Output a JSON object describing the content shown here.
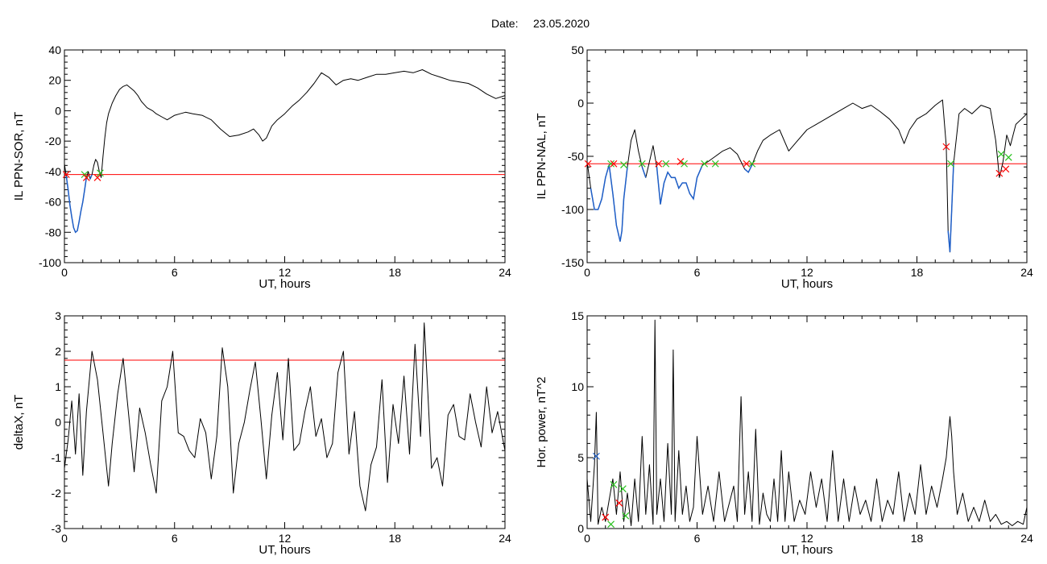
{
  "figure": {
    "date_label": "Date:",
    "date_value": "23.05.2020"
  },
  "colors": {
    "trace": "#000000",
    "threshold": "#ff0000",
    "highlight": "#1f5fc8",
    "marker_red": "#ff0000",
    "marker_green": "#29c21f",
    "marker_blue": "#1f5fc8"
  },
  "chart_data": [
    {
      "type": "line",
      "xlabel": "UT, hours",
      "ylabel": "IL PPN-SOR, nT",
      "xlim": [
        0,
        24
      ],
      "ylim": [
        -100,
        40
      ],
      "xticks": [
        0,
        6,
        12,
        18,
        24
      ],
      "yticks": [
        -100,
        -80,
        -60,
        -40,
        -20,
        0,
        20,
        40
      ],
      "threshold": -42,
      "series": [
        {
          "x": [
            0,
            0.1,
            0.2,
            0.3,
            0.4,
            0.5,
            0.6,
            0.7,
            0.8,
            0.9,
            1.0,
            1.1,
            1.2,
            1.3,
            1.4,
            1.5,
            1.6,
            1.7,
            1.8,
            1.9,
            2.0,
            2.1,
            2.2,
            2.3,
            2.4,
            2.6,
            2.8,
            3.0,
            3.2,
            3.4,
            3.6,
            3.8,
            4.0,
            4.2,
            4.5,
            4.8,
            5.0,
            5.3,
            5.6,
            6.0,
            6.3,
            6.6,
            7.0,
            7.5,
            8.0,
            8.5,
            9.0,
            9.5,
            10.0,
            10.3,
            10.6,
            10.8,
            11.0,
            11.3,
            11.6,
            12.0,
            12.4,
            12.8,
            13.2,
            13.6,
            14.0,
            14.4,
            14.8,
            15.2,
            15.6,
            16.0,
            16.5,
            17.0,
            17.5,
            18.0,
            18.5,
            19.0,
            19.5,
            20.0,
            20.5,
            21.0,
            21.5,
            22.0,
            22.5,
            23.0,
            23.5,
            24.0
          ],
          "y": [
            -35,
            -43,
            -52,
            -62,
            -70,
            -77,
            -80,
            -79,
            -73,
            -66,
            -60,
            -52,
            -44,
            -40,
            -45,
            -42,
            -36,
            -32,
            -34,
            -40,
            -44,
            -30,
            -18,
            -8,
            -2,
            5,
            10,
            14,
            16,
            17,
            15,
            13,
            10,
            6,
            2,
            0,
            -2,
            -4,
            -6,
            -3,
            -2,
            -1,
            -2,
            -3,
            -6,
            -12,
            -17,
            -16,
            -14,
            -12,
            -16,
            -20,
            -18,
            -10,
            -6,
            -2,
            3,
            7,
            12,
            18,
            25,
            22,
            17,
            20,
            21,
            20,
            22,
            24,
            24,
            25,
            26,
            25,
            27,
            24,
            22,
            20,
            19,
            18,
            15,
            11,
            8,
            10
          ],
          "highlight_below_threshold": true
        }
      ],
      "markers": [
        {
          "x": 0.1,
          "y": -42,
          "color": "red"
        },
        {
          "x": 1.1,
          "y": -42,
          "color": "green"
        },
        {
          "x": 1.2,
          "y": -44,
          "color": "red"
        },
        {
          "x": 1.8,
          "y": -44,
          "color": "red"
        },
        {
          "x": 1.95,
          "y": -41,
          "color": "green"
        }
      ]
    },
    {
      "type": "line",
      "xlabel": "UT, hours",
      "ylabel": "IL PPN-NAL, nT",
      "xlim": [
        0,
        24
      ],
      "ylim": [
        -150,
        50
      ],
      "xticks": [
        0,
        6,
        12,
        18,
        24
      ],
      "yticks": [
        -150,
        -100,
        -50,
        0,
        50
      ],
      "threshold": -57,
      "series": [
        {
          "x": [
            0,
            0.2,
            0.4,
            0.6,
            0.8,
            1.0,
            1.2,
            1.4,
            1.6,
            1.8,
            1.9,
            2.0,
            2.2,
            2.4,
            2.6,
            2.8,
            3.0,
            3.2,
            3.4,
            3.6,
            3.8,
            4.0,
            4.2,
            4.4,
            4.6,
            4.8,
            5.0,
            5.2,
            5.4,
            5.6,
            5.8,
            6.0,
            6.3,
            6.6,
            7.0,
            7.4,
            7.8,
            8.2,
            8.6,
            8.8,
            9.0,
            9.3,
            9.6,
            10.0,
            10.5,
            11.0,
            11.5,
            12.0,
            12.5,
            13.0,
            13.5,
            14.0,
            14.5,
            15.0,
            15.5,
            16.0,
            16.5,
            17.0,
            17.3,
            17.6,
            18.0,
            18.5,
            19.0,
            19.4,
            19.6,
            19.7,
            19.8,
            19.9,
            20.0,
            20.3,
            20.6,
            21.0,
            21.5,
            22.0,
            22.3,
            22.5,
            22.7,
            22.9,
            23.1,
            23.4,
            23.7,
            24.0
          ],
          "y": [
            -55,
            -80,
            -100,
            -100,
            -90,
            -70,
            -58,
            -85,
            -115,
            -130,
            -120,
            -90,
            -60,
            -35,
            -25,
            -45,
            -60,
            -70,
            -55,
            -40,
            -60,
            -95,
            -75,
            -65,
            -70,
            -70,
            -80,
            -75,
            -75,
            -85,
            -90,
            -70,
            -58,
            -55,
            -50,
            -45,
            -42,
            -48,
            -62,
            -65,
            -58,
            -45,
            -35,
            -30,
            -25,
            -45,
            -35,
            -25,
            -20,
            -15,
            -10,
            -5,
            0,
            -5,
            -2,
            -8,
            -15,
            -25,
            -38,
            -25,
            -15,
            -10,
            -2,
            3,
            -40,
            -120,
            -140,
            -100,
            -57,
            -10,
            -5,
            -10,
            -2,
            -5,
            -35,
            -70,
            -55,
            -30,
            -40,
            -20,
            -15,
            -10
          ],
          "highlight_below_threshold": true
        }
      ],
      "markers": [
        {
          "x": 0.05,
          "y": -57,
          "color": "red"
        },
        {
          "x": 1.3,
          "y": -57,
          "color": "green"
        },
        {
          "x": 1.45,
          "y": -57,
          "color": "red"
        },
        {
          "x": 2.0,
          "y": -58,
          "color": "green"
        },
        {
          "x": 3.0,
          "y": -57,
          "color": "green"
        },
        {
          "x": 3.9,
          "y": -57,
          "color": "red"
        },
        {
          "x": 4.3,
          "y": -57,
          "color": "green"
        },
        {
          "x": 5.1,
          "y": -55,
          "color": "red"
        },
        {
          "x": 5.3,
          "y": -57,
          "color": "green"
        },
        {
          "x": 6.4,
          "y": -57,
          "color": "green"
        },
        {
          "x": 7.0,
          "y": -57,
          "color": "green"
        },
        {
          "x": 8.7,
          "y": -57,
          "color": "red"
        },
        {
          "x": 9.0,
          "y": -57,
          "color": "green"
        },
        {
          "x": 19.6,
          "y": -41,
          "color": "red"
        },
        {
          "x": 19.85,
          "y": -57,
          "color": "green"
        },
        {
          "x": 22.5,
          "y": -66,
          "color": "red"
        },
        {
          "x": 22.6,
          "y": -48,
          "color": "green"
        },
        {
          "x": 22.85,
          "y": -62,
          "color": "red"
        },
        {
          "x": 23.0,
          "y": -51,
          "color": "green"
        }
      ]
    },
    {
      "type": "line",
      "xlabel": "UT, hours",
      "ylabel": "deltaX, nT",
      "xlim": [
        0,
        24
      ],
      "ylim": [
        -3,
        3
      ],
      "xticks": [
        0,
        6,
        12,
        18,
        24
      ],
      "yticks": [
        -3,
        -2,
        -1,
        0,
        1,
        2,
        3
      ],
      "threshold": 1.75,
      "series": [
        {
          "x": [
            0,
            0.2,
            0.4,
            0.6,
            0.8,
            1.0,
            1.2,
            1.5,
            1.8,
            2.1,
            2.4,
            2.6,
            2.9,
            3.2,
            3.5,
            3.8,
            4.1,
            4.4,
            4.7,
            5.0,
            5.3,
            5.6,
            5.9,
            6.2,
            6.5,
            6.8,
            7.1,
            7.4,
            7.7,
            8.0,
            8.3,
            8.6,
            8.9,
            9.2,
            9.5,
            9.8,
            10.1,
            10.4,
            10.7,
            11.0,
            11.3,
            11.6,
            11.9,
            12.2,
            12.5,
            12.8,
            13.1,
            13.4,
            13.7,
            14.0,
            14.3,
            14.6,
            14.9,
            15.2,
            15.5,
            15.8,
            16.1,
            16.4,
            16.7,
            17.0,
            17.3,
            17.6,
            17.9,
            18.2,
            18.5,
            18.8,
            19.1,
            19.4,
            19.6,
            19.8,
            20.0,
            20.3,
            20.6,
            20.9,
            21.2,
            21.5,
            21.8,
            22.1,
            22.4,
            22.7,
            23.0,
            23.3,
            23.6,
            24.0
          ],
          "y": [
            -1.3,
            -0.5,
            0.6,
            -0.9,
            0.8,
            -1.5,
            0.3,
            2.0,
            1.2,
            -0.3,
            -1.8,
            -0.6,
            0.8,
            1.8,
            0.2,
            -1.4,
            0.4,
            -0.3,
            -1.2,
            -2.0,
            0.6,
            1.0,
            2.0,
            -0.3,
            -0.4,
            -0.8,
            -1.0,
            0.1,
            -0.3,
            -1.6,
            -0.4,
            2.1,
            1.0,
            -2.0,
            -0.6,
            0.0,
            0.9,
            1.7,
            0.1,
            -1.6,
            0.2,
            1.4,
            -0.5,
            1.8,
            -0.8,
            -0.6,
            0.3,
            1.0,
            -0.4,
            0.1,
            -1.0,
            -0.6,
            1.4,
            2.0,
            -0.9,
            0.3,
            -1.8,
            -2.5,
            -1.2,
            -0.7,
            1.2,
            -1.7,
            0.5,
            -0.6,
            1.3,
            -0.9,
            2.2,
            -0.4,
            2.8,
            0.8,
            -1.3,
            -1.0,
            -1.8,
            0.2,
            0.5,
            -0.4,
            -0.5,
            0.8,
            0.0,
            -0.7,
            1.0,
            -0.3,
            0.3,
            -0.8
          ]
        }
      ],
      "markers": []
    },
    {
      "type": "line",
      "xlabel": "UT, hours",
      "ylabel": "Hor. power, nT^2",
      "xlim": [
        0,
        24
      ],
      "ylim": [
        0,
        15
      ],
      "xticks": [
        0,
        6,
        12,
        18,
        24
      ],
      "yticks": [
        0,
        5,
        10,
        15
      ],
      "series": [
        {
          "x": [
            0,
            0.2,
            0.4,
            0.5,
            0.6,
            0.8,
            1.0,
            1.2,
            1.4,
            1.6,
            1.8,
            2.0,
            2.2,
            2.4,
            2.6,
            2.8,
            3.0,
            3.2,
            3.4,
            3.6,
            3.7,
            3.8,
            4.0,
            4.2,
            4.4,
            4.6,
            4.7,
            4.8,
            5.0,
            5.2,
            5.4,
            5.6,
            5.8,
            6.0,
            6.3,
            6.6,
            6.9,
            7.2,
            7.5,
            7.8,
            8.0,
            8.2,
            8.4,
            8.6,
            8.8,
            9.0,
            9.2,
            9.4,
            9.6,
            9.8,
            10.0,
            10.2,
            10.4,
            10.6,
            10.8,
            11.0,
            11.3,
            11.6,
            11.9,
            12.2,
            12.5,
            12.8,
            13.1,
            13.4,
            13.7,
            14.0,
            14.3,
            14.6,
            14.9,
            15.2,
            15.5,
            15.8,
            16.1,
            16.4,
            16.7,
            17.0,
            17.3,
            17.6,
            17.9,
            18.2,
            18.5,
            18.8,
            19.1,
            19.4,
            19.6,
            19.8,
            19.9,
            20.0,
            20.2,
            20.5,
            20.8,
            21.1,
            21.4,
            21.7,
            22.0,
            22.3,
            22.6,
            22.9,
            23.2,
            23.5,
            23.8,
            24.0
          ],
          "y": [
            3.5,
            0.5,
            4.5,
            8.2,
            0.3,
            1.5,
            0.5,
            2.0,
            3.5,
            1.0,
            4.0,
            0.5,
            2.5,
            0.2,
            3.5,
            0.5,
            6.5,
            1.0,
            4.5,
            0.3,
            14.7,
            1.0,
            3.5,
            0.5,
            6.0,
            1.0,
            12.6,
            0.5,
            5.5,
            1.0,
            3.0,
            0.5,
            1.5,
            6.5,
            1.0,
            3.0,
            0.5,
            4.0,
            0.5,
            2.0,
            3.0,
            0.5,
            9.3,
            1.0,
            4.0,
            0.5,
            7.0,
            0.3,
            2.5,
            1.0,
            0.5,
            3.5,
            0.5,
            5.5,
            0.5,
            4.0,
            0.5,
            2.0,
            1.0,
            4.0,
            1.5,
            3.5,
            0.5,
            5.5,
            0.5,
            3.5,
            0.5,
            3.0,
            1.0,
            2.0,
            0.5,
            3.5,
            0.5,
            2.0,
            1.0,
            4.0,
            0.5,
            2.5,
            1.0,
            4.5,
            1.0,
            3.0,
            1.5,
            3.5,
            5.0,
            7.9,
            6.5,
            4.0,
            1.0,
            2.5,
            0.5,
            1.5,
            0.5,
            2.0,
            0.5,
            1.0,
            0.3,
            0.5,
            0.2,
            0.5,
            0.3,
            1.5
          ]
        }
      ],
      "markers": [
        {
          "x": 0.5,
          "y": 5.1,
          "color": "blue"
        },
        {
          "x": 1.0,
          "y": 0.8,
          "color": "red"
        },
        {
          "x": 1.3,
          "y": 0.3,
          "color": "green"
        },
        {
          "x": 1.45,
          "y": 3.1,
          "color": "green"
        },
        {
          "x": 1.75,
          "y": 1.8,
          "color": "red"
        },
        {
          "x": 1.95,
          "y": 2.8,
          "color": "green"
        },
        {
          "x": 2.1,
          "y": 0.9,
          "color": "green"
        }
      ]
    }
  ]
}
